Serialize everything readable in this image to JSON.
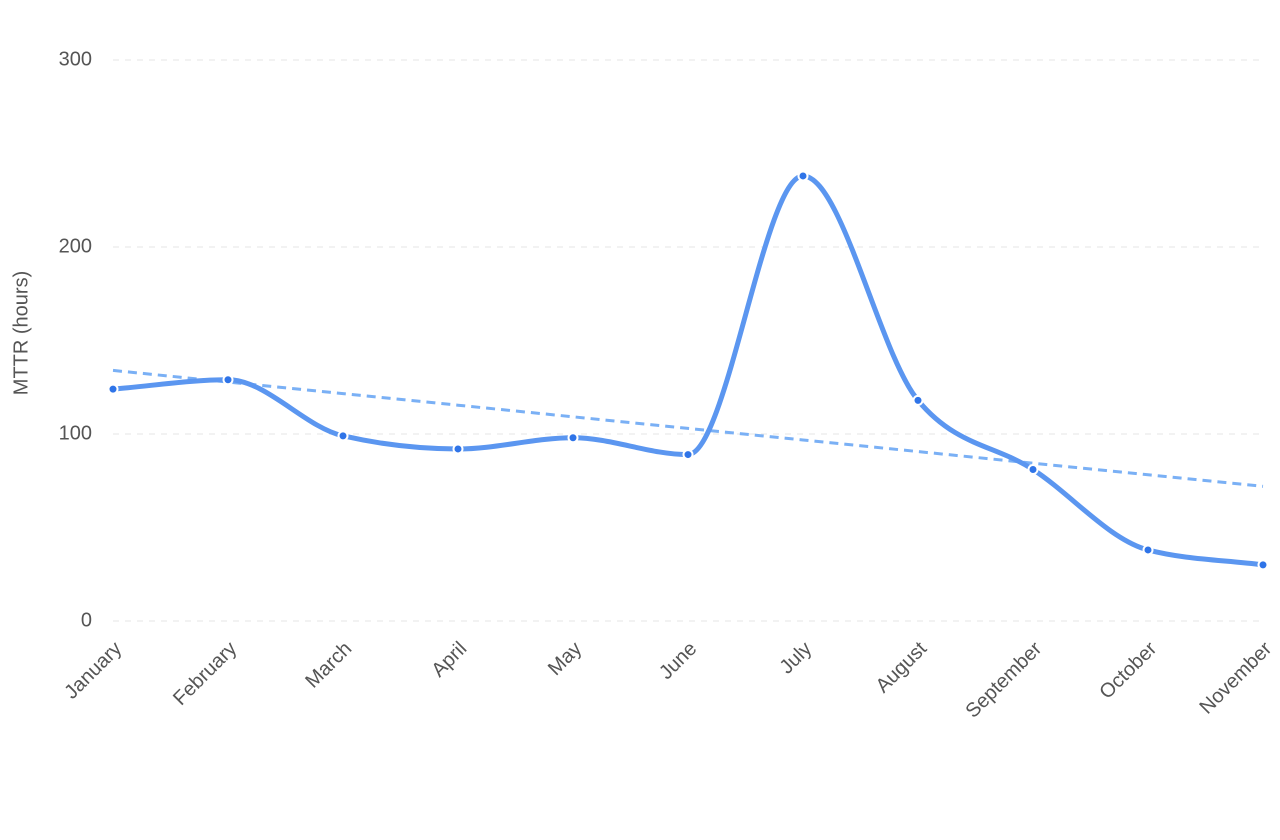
{
  "chart_data": {
    "type": "line",
    "y_label": "MTTR (hours)",
    "categories": [
      "January",
      "February",
      "March",
      "April",
      "May",
      "June",
      "July",
      "August",
      "September",
      "October",
      "November"
    ],
    "series": [
      {
        "color": "#5b96f0",
        "values": [
          124,
          129,
          99,
          92,
          98,
          89,
          238,
          118,
          81,
          38,
          30
        ]
      },
      {
        "color": "#7ab0f5",
        "dashed": true,
        "values": [
          134,
          127.8,
          121.6,
          115.4,
          109.2,
          103,
          96.8,
          90.6,
          84.4,
          78.2,
          72
        ]
      }
    ],
    "ylim": [
      0,
      300
    ],
    "yticks": [
      0,
      100,
      200,
      300
    ],
    "grid": true
  }
}
